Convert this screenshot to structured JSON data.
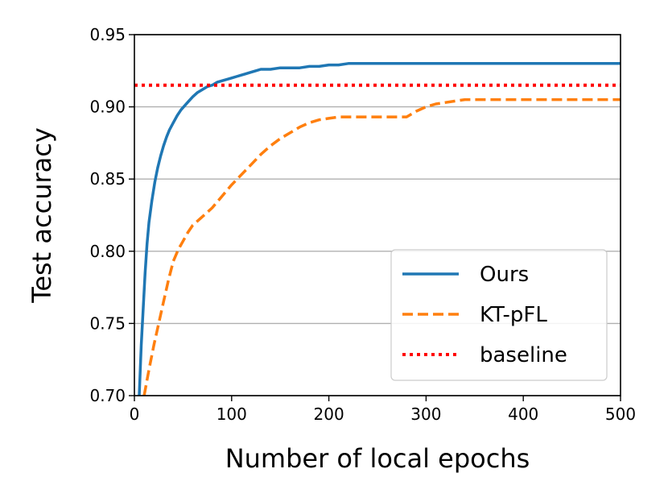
{
  "chart_data": {
    "type": "line",
    "xlabel": "Number of local epochs",
    "ylabel": "Test accuracy",
    "xlim": [
      0,
      500
    ],
    "ylim": [
      0.7,
      0.95
    ],
    "xticks": [
      "0",
      "100",
      "200",
      "300",
      "400",
      "500"
    ],
    "yticks": [
      "0.70",
      "0.75",
      "0.80",
      "0.85",
      "0.90",
      "0.95"
    ],
    "grid": "horizontal",
    "legend_position": "lower-right",
    "series": [
      {
        "name": "Ours",
        "color": "#1f77b4",
        "style": "solid",
        "x": [
          5,
          7,
          9,
          11,
          13,
          15,
          18,
          21,
          24,
          27,
          30,
          33,
          36,
          40,
          44,
          48,
          52,
          56,
          60,
          65,
          70,
          75,
          80,
          85,
          90,
          95,
          100,
          105,
          110,
          115,
          120,
          125,
          130,
          140,
          150,
          160,
          170,
          180,
          190,
          200,
          210,
          220,
          240,
          260,
          280,
          300,
          350,
          400,
          450,
          500
        ],
        "y": [
          0.7,
          0.735,
          0.76,
          0.785,
          0.805,
          0.82,
          0.835,
          0.848,
          0.858,
          0.866,
          0.873,
          0.879,
          0.884,
          0.889,
          0.894,
          0.898,
          0.901,
          0.904,
          0.907,
          0.91,
          0.912,
          0.914,
          0.915,
          0.917,
          0.918,
          0.919,
          0.92,
          0.921,
          0.922,
          0.923,
          0.924,
          0.925,
          0.926,
          0.926,
          0.927,
          0.927,
          0.927,
          0.928,
          0.928,
          0.929,
          0.929,
          0.93,
          0.93,
          0.93,
          0.93,
          0.93,
          0.93,
          0.93,
          0.93,
          0.93
        ]
      },
      {
        "name": "KT-pFL",
        "color": "#ff7f0e",
        "style": "dashed",
        "x": [
          10,
          15,
          20,
          25,
          30,
          35,
          40,
          45,
          50,
          55,
          60,
          70,
          80,
          90,
          100,
          110,
          120,
          130,
          140,
          150,
          160,
          170,
          180,
          190,
          200,
          210,
          220,
          240,
          260,
          280,
          290,
          300,
          310,
          320,
          330,
          340,
          360,
          380,
          400,
          450,
          500
        ],
        "y": [
          0.7,
          0.718,
          0.735,
          0.75,
          0.765,
          0.78,
          0.793,
          0.801,
          0.807,
          0.813,
          0.818,
          0.824,
          0.83,
          0.838,
          0.846,
          0.853,
          0.86,
          0.867,
          0.873,
          0.878,
          0.882,
          0.886,
          0.889,
          0.891,
          0.892,
          0.893,
          0.893,
          0.893,
          0.893,
          0.893,
          0.897,
          0.9,
          0.902,
          0.903,
          0.904,
          0.905,
          0.905,
          0.905,
          0.905,
          0.905,
          0.905
        ]
      },
      {
        "name": "baseline",
        "color": "#ff0000",
        "style": "dotted",
        "x": [
          0,
          500
        ],
        "y": [
          0.915,
          0.915
        ]
      }
    ]
  }
}
